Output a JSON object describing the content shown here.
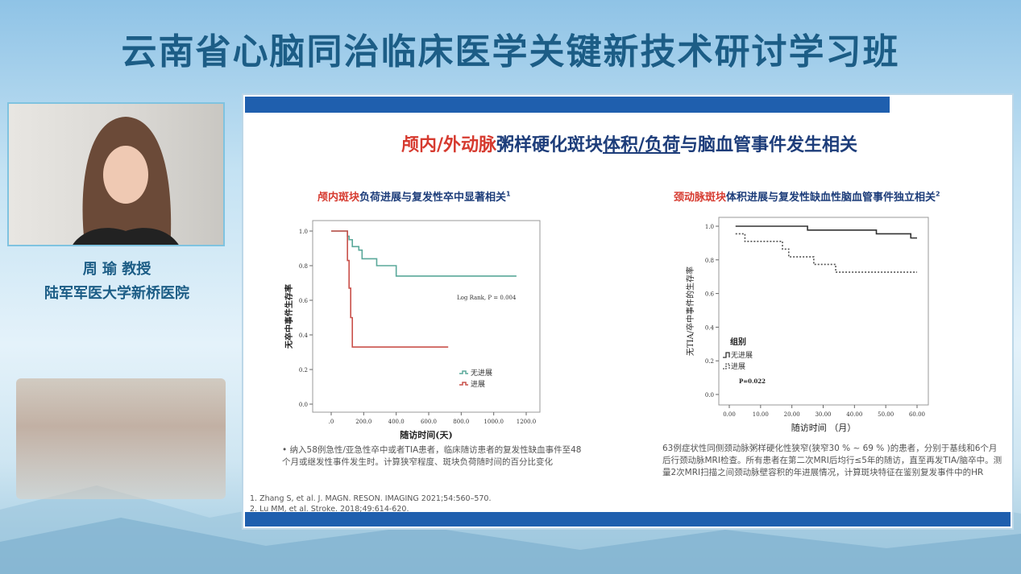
{
  "banner": {
    "title": "云南省心脑同治临床医学关键新技术研讨学习班"
  },
  "speaker": {
    "name": "周 瑜 教授",
    "affiliation": "陆军军医大学新桥医院"
  },
  "slide": {
    "title_red": "颅内/外动脉",
    "title_mid": "粥样硬化斑块",
    "title_u": "体积/负荷",
    "title_end": "与脑血管事件发生相关",
    "left": {
      "title_red": "颅内斑块",
      "title_rest": "负荷进展与复发性卒中显著相关",
      "sup": "1",
      "note": "纳入58例急性/亚急性卒中或者TIA患者，临床随访患者的复发性缺血事件至48个月或继发性事件发生时。计算狭窄程度、斑块负荷随时间的百分比变化"
    },
    "right": {
      "title_red": "颈动脉斑块",
      "title_rest": "体积进展与复发性缺血性脑血管事件独立相关",
      "sup": "2",
      "note": "63例症状性同侧颈动脉粥样硬化性狭窄(狭窄30 % ~ 69 % )的患者，分别于基线和6个月后行颈动脉MRI检查。所有患者在第二次MRI后均行≤5年的随访，直至再发TIA/脑卒中。测量2次MRI扫描之间颈动脉壁容积的年进展情况，计算斑块特征在鉴别复发事件中的HR"
    },
    "references": [
      "1.   Zhang S, et al. J. MAGN. RESON. IMAGING 2021;54:560–570.",
      "2.   Lu MM, et al. Stroke. 2018;49:614-620."
    ]
  },
  "chart_data": [
    {
      "type": "line",
      "xlabel": "随访时间(天)",
      "ylabel": "无卒中事件生存率",
      "xlim": [
        0,
        1200
      ],
      "ylim": [
        0,
        1
      ],
      "xticks": [
        ".0",
        "200.0",
        "400.0",
        "600.0",
        "800.0",
        "1000.0",
        "1200.0"
      ],
      "yticks": [
        "0.0",
        "0.2",
        "0.4",
        "0.6",
        "0.8",
        "1.0"
      ],
      "annotation": "Log Rank, P = 0.004",
      "legend_position": "bottom-right",
      "series": [
        {
          "name": "无进展",
          "color": "#5aa89a",
          "step": true,
          "x": [
            0,
            100,
            110,
            130,
            170,
            190,
            280,
            400,
            1140
          ],
          "y": [
            1,
            0.97,
            0.95,
            0.91,
            0.89,
            0.84,
            0.8,
            0.74,
            0.74
          ]
        },
        {
          "name": "进展",
          "color": "#c9504a",
          "step": true,
          "x": [
            0,
            100,
            110,
            120,
            130,
            720
          ],
          "y": [
            1,
            0.83,
            0.67,
            0.5,
            0.33,
            0.33
          ]
        }
      ]
    },
    {
      "type": "line",
      "xlabel": "随访时间 （月）",
      "ylabel": "无TIA/卒中事件的生存率",
      "xlim": [
        0,
        60
      ],
      "ylim": [
        0,
        1
      ],
      "xticks": [
        "0.00",
        "10.00",
        "20.00",
        "30.00",
        "40.00",
        "50.00",
        "60.00"
      ],
      "yticks": [
        "0.0",
        "0.2",
        "0.4",
        "0.6",
        "0.8",
        "1.0"
      ],
      "legend_title": "组别",
      "annotation": "P=0.022",
      "legend_position": "bottom-left",
      "series": [
        {
          "name": "无进展",
          "color": "#333333",
          "dash": false,
          "step": true,
          "x": [
            2,
            25,
            47,
            58,
            60
          ],
          "y": [
            1,
            0.977,
            0.955,
            0.93,
            0.93
          ]
        },
        {
          "name": "进展",
          "color": "#555555",
          "dash": true,
          "step": true,
          "x": [
            2,
            5,
            17,
            19,
            27,
            34,
            60
          ],
          "y": [
            0.955,
            0.91,
            0.864,
            0.818,
            0.773,
            0.727,
            0.727
          ]
        }
      ]
    }
  ]
}
